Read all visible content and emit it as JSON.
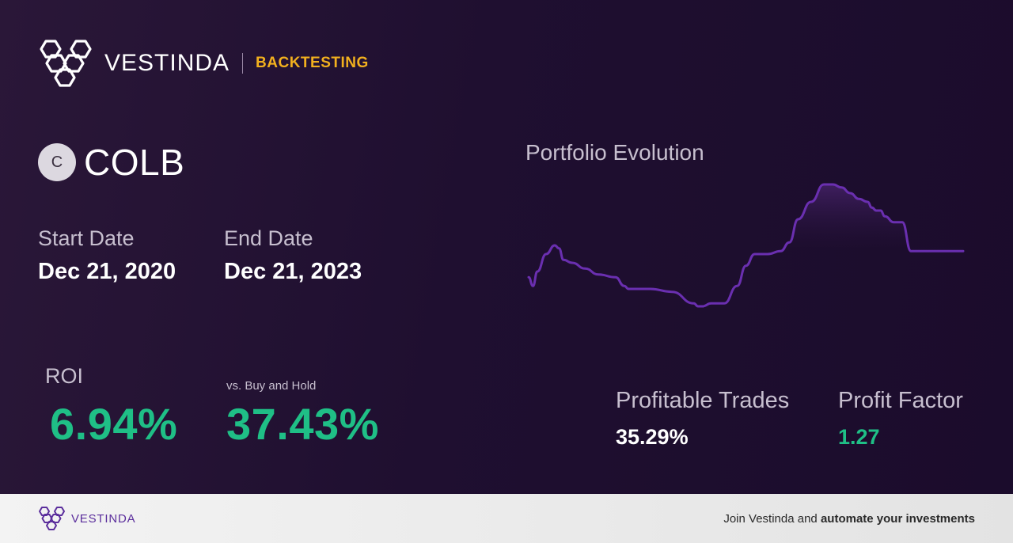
{
  "brand": {
    "name": "VESTINDA",
    "tag": "BACKTESTING"
  },
  "ticker": {
    "badge": "C",
    "symbol": "COLB"
  },
  "dates": {
    "start_label": "Start Date",
    "start_value": "Dec 21, 2020",
    "end_label": "End Date",
    "end_value": "Dec 21, 2023"
  },
  "metrics": {
    "roi_label": "ROI",
    "roi_value": "6.94%",
    "bh_label": "vs. Buy and Hold",
    "bh_value": "37.43%",
    "profitable_label": "Profitable Trades",
    "profitable_value": "35.29%",
    "pf_label": "Profit Factor",
    "pf_value": "1.27"
  },
  "chart": {
    "title": "Portfolio Evolution",
    "line_color": "#6a2fb0"
  },
  "chart_data": {
    "type": "line",
    "title": "Portfolio Evolution",
    "xlabel": "",
    "ylabel": "",
    "grid": false,
    "legend": "none",
    "x": [
      0,
      1,
      2,
      4,
      6,
      7,
      8,
      10,
      13,
      16,
      20,
      22,
      23,
      24,
      28,
      33,
      38,
      39,
      40,
      42,
      45,
      48,
      50,
      52,
      55,
      58,
      60,
      62,
      65,
      68,
      70,
      72,
      74,
      76,
      78,
      79,
      80,
      81,
      82,
      84,
      86,
      88,
      92,
      95,
      96,
      100
    ],
    "values": [
      98,
      95,
      100,
      106,
      109,
      108,
      104,
      103,
      101,
      99,
      98,
      95,
      94,
      94,
      94,
      93,
      89,
      88,
      88,
      89,
      89,
      95,
      102,
      106,
      106,
      107,
      110,
      118,
      124,
      130,
      130,
      129,
      127,
      125,
      124,
      122,
      121,
      121,
      119,
      117,
      117,
      107,
      107,
      107,
      107,
      107
    ],
    "colors": {
      "line": "#6a2fb0",
      "area": "#3c1d5c"
    }
  },
  "footer": {
    "brand": "VESTINDA",
    "cta_prefix": "Join Vestinda and ",
    "cta_bold": "automate your investments"
  },
  "colors": {
    "accent_green": "#1fbf86",
    "accent_gold": "#f2b01e",
    "brand_purple": "#5b2e9c"
  }
}
